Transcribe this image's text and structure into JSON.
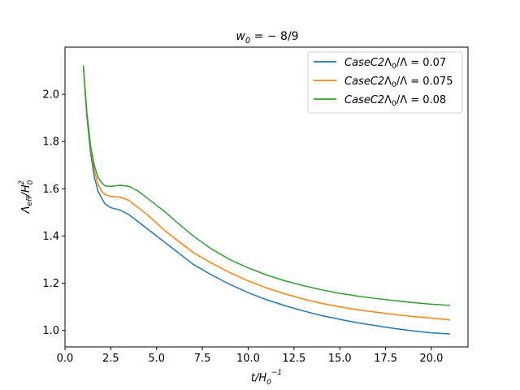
{
  "chart_data": {
    "type": "line",
    "title": {
      "prefix": "w",
      "sub": "0",
      "suffix": " = − 8/9"
    },
    "xlabel": {
      "main": "t/H",
      "sub": "0",
      "sup": "−1"
    },
    "ylabel": {
      "main": "Λ",
      "sub1": "eff",
      "mid": "/H",
      "sub2": "0",
      "sup": "2"
    },
    "xlim": [
      0.0,
      22.0
    ],
    "ylim": [
      0.93,
      2.2
    ],
    "xticks": [
      0.0,
      2.5,
      5.0,
      7.5,
      10.0,
      12.5,
      15.0,
      17.5,
      20.0
    ],
    "xtick_labels": [
      "0.0",
      "2.5",
      "5.0",
      "7.5",
      "10.0",
      "12.5",
      "15.0",
      "17.5",
      "20.0"
    ],
    "yticks": [
      1.0,
      1.2,
      1.4,
      1.6,
      1.8,
      2.0
    ],
    "ytick_labels": [
      "1.0",
      "1.2",
      "1.4",
      "1.6",
      "1.8",
      "2.0"
    ],
    "grid": false,
    "legend_position": "top-right",
    "series": [
      {
        "name": "CaseC2Λ₀/Λ = 0.07",
        "legend": {
          "italic": "CaseC2",
          "rest": "Λ",
          "sub": "0",
          "tail": "/Λ = 0.07"
        },
        "color": "#1f77b4",
        "x": [
          1.0,
          1.2,
          1.4,
          1.6,
          1.8,
          2.0,
          2.2,
          2.5,
          3.0,
          3.5,
          4.0,
          4.5,
          5.0,
          5.5,
          6.0,
          7.0,
          8.0,
          9.0,
          10.0,
          11.0,
          12.0,
          13.0,
          14.0,
          15.0,
          16.0,
          17.0,
          18.0,
          19.0,
          20.0,
          21.0
        ],
        "y": [
          2.12,
          1.9,
          1.75,
          1.65,
          1.59,
          1.56,
          1.535,
          1.52,
          1.51,
          1.49,
          1.46,
          1.43,
          1.4,
          1.37,
          1.34,
          1.28,
          1.235,
          1.195,
          1.16,
          1.13,
          1.105,
          1.083,
          1.063,
          1.047,
          1.032,
          1.02,
          1.008,
          0.998,
          0.99,
          0.985
        ]
      },
      {
        "name": "CaseC2Λ₀/Λ = 0.075",
        "legend": {
          "italic": "CaseC2",
          "rest": "Λ",
          "sub": "0",
          "tail": "/Λ = 0.075"
        },
        "color": "#ff7f0e",
        "x": [
          1.0,
          1.2,
          1.4,
          1.6,
          1.8,
          2.0,
          2.2,
          2.5,
          3.0,
          3.5,
          4.0,
          4.5,
          5.0,
          5.5,
          6.0,
          7.0,
          8.0,
          9.0,
          10.0,
          11.0,
          12.0,
          13.0,
          14.0,
          15.0,
          16.0,
          17.0,
          18.0,
          19.0,
          20.0,
          21.0
        ],
        "y": [
          2.12,
          1.91,
          1.77,
          1.68,
          1.62,
          1.59,
          1.575,
          1.568,
          1.565,
          1.55,
          1.52,
          1.49,
          1.455,
          1.42,
          1.39,
          1.33,
          1.285,
          1.245,
          1.21,
          1.18,
          1.155,
          1.133,
          1.115,
          1.1,
          1.087,
          1.077,
          1.067,
          1.059,
          1.052,
          1.045
        ]
      },
      {
        "name": "CaseC2Λ₀/Λ = 0.08",
        "legend": {
          "italic": "CaseC2",
          "rest": "Λ",
          "sub": "0",
          "tail": "/Λ = 0.08"
        },
        "color": "#2ca02c",
        "x": [
          1.0,
          1.2,
          1.4,
          1.6,
          1.8,
          2.0,
          2.2,
          2.5,
          3.0,
          3.5,
          4.0,
          4.5,
          5.0,
          5.5,
          6.0,
          7.0,
          8.0,
          9.0,
          10.0,
          11.0,
          12.0,
          13.0,
          14.0,
          15.0,
          16.0,
          17.0,
          18.0,
          19.0,
          20.0,
          21.0
        ],
        "y": [
          2.12,
          1.92,
          1.78,
          1.7,
          1.65,
          1.625,
          1.612,
          1.61,
          1.615,
          1.61,
          1.59,
          1.56,
          1.53,
          1.5,
          1.465,
          1.4,
          1.345,
          1.3,
          1.265,
          1.235,
          1.21,
          1.19,
          1.172,
          1.157,
          1.145,
          1.135,
          1.126,
          1.118,
          1.111,
          1.106
        ]
      }
    ]
  }
}
